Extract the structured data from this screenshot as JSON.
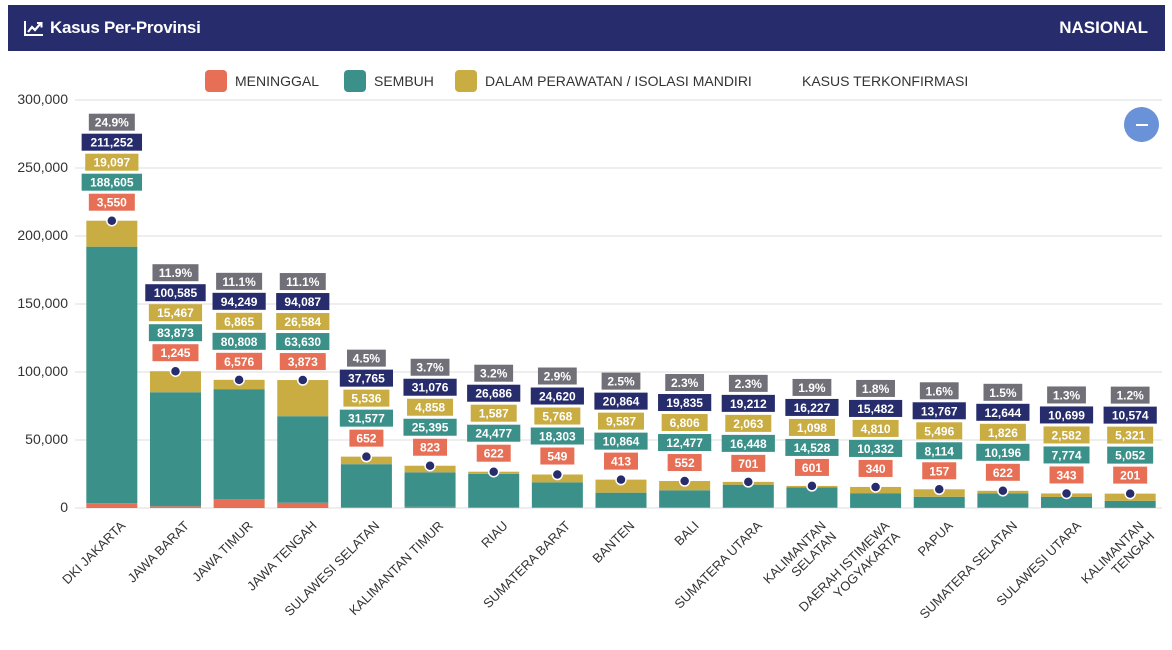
{
  "header": {
    "title": "Kasus Per-Provinsi",
    "scope": "NASIONAL",
    "icon": "line-chart-icon"
  },
  "colors": {
    "header_bg": "#262c6c",
    "meninggal": "#e76f55",
    "sembuh": "#3b9089",
    "perawatan": "#c9ac42",
    "terkonfirmasi": "#262c6c",
    "percent": "#717078",
    "zoom_button": "#6a92d8"
  },
  "legend": [
    {
      "key": "meninggal",
      "label": "MENINGGAL"
    },
    {
      "key": "sembuh",
      "label": "SEMBUH"
    },
    {
      "key": "perawatan",
      "label": "DALAM PERAWATAN / ISOLASI MANDIRI"
    },
    {
      "key": "terkonfirmasi",
      "label": "KASUS TERKONFIRMASI"
    }
  ],
  "zoom_button": {
    "icon": "minus-icon"
  },
  "chart_data": {
    "type": "bar",
    "stacked": true,
    "title": "Kasus Per-Provinsi",
    "xlabel": "",
    "ylabel": "",
    "ylim": [
      0,
      300000
    ],
    "yticks": [
      0,
      50000,
      100000,
      150000,
      200000,
      250000,
      300000
    ],
    "ytick_labels": [
      "0",
      "50,000",
      "100,000",
      "150,000",
      "200,000",
      "250,000",
      "300,000"
    ],
    "grid": true,
    "legend_position": "top",
    "categories": [
      "DKI JAKARTA",
      "JAWA BARAT",
      "JAWA TIMUR",
      "JAWA TENGAH",
      "SULAWESI SELATAN",
      "KALIMANTAN TIMUR",
      "RIAU",
      "SUMATERA BARAT",
      "BANTEN",
      "BALI",
      "SUMATERA UTARA",
      "KALIMANTAN SELATAN",
      "DAERAH ISTIMEWA YOGYAKARTA",
      "PAPUA",
      "SUMATERA SELATAN",
      "SULAWESI UTARA",
      "KALIMANTAN TENGAH"
    ],
    "category_lines": [
      [
        "DKI JAKARTA"
      ],
      [
        "JAWA BARAT"
      ],
      [
        "JAWA TIMUR"
      ],
      [
        "JAWA TENGAH"
      ],
      [
        "SULAWESI SELATAN"
      ],
      [
        "KALIMANTAN TIMUR"
      ],
      [
        "RIAU"
      ],
      [
        "SUMATERA BARAT"
      ],
      [
        "BANTEN"
      ],
      [
        "BALI"
      ],
      [
        "SUMATERA UTARA"
      ],
      [
        "KALIMANTAN",
        "SELATAN"
      ],
      [
        "DAERAH ISTIMEWA",
        "YOGYAKARTA"
      ],
      [
        "PAPUA"
      ],
      [
        "SUMATERA SELATAN"
      ],
      [
        "SULAWESI UTARA"
      ],
      [
        "KALIMANTAN",
        "TENGAH"
      ]
    ],
    "series": [
      {
        "name": "MENINGGAL",
        "key": "meninggal",
        "values": [
          3550,
          1245,
          6576,
          3873,
          652,
          823,
          622,
          549,
          413,
          552,
          701,
          601,
          340,
          157,
          622,
          343,
          201
        ]
      },
      {
        "name": "SEMBUH",
        "key": "sembuh",
        "values": [
          188605,
          83873,
          80808,
          63630,
          31577,
          25395,
          24477,
          18303,
          10864,
          12477,
          16448,
          14528,
          10332,
          8114,
          10196,
          7774,
          5052
        ]
      },
      {
        "name": "DALAM PERAWATAN / ISOLASI MANDIRI",
        "key": "perawatan",
        "values": [
          19097,
          15467,
          6865,
          26584,
          5536,
          4858,
          1587,
          5768,
          9587,
          6806,
          2063,
          1098,
          4810,
          5496,
          1826,
          2582,
          5321
        ]
      },
      {
        "name": "KASUS TERKONFIRMASI",
        "key": "terkonfirmasi",
        "type": "scatter",
        "values": [
          211252,
          100585,
          94249,
          94087,
          37765,
          31076,
          26686,
          24620,
          20864,
          19835,
          19212,
          16227,
          15482,
          13767,
          12644,
          10699,
          10574
        ]
      }
    ],
    "percent_labels": [
      "24.9%",
      "11.9%",
      "11.1%",
      "11.1%",
      "4.5%",
      "3.7%",
      "3.2%",
      "2.9%",
      "2.5%",
      "2.3%",
      "2.3%",
      "1.9%",
      "1.8%",
      "1.6%",
      "1.5%",
      "1.3%",
      "1.2%"
    ]
  }
}
